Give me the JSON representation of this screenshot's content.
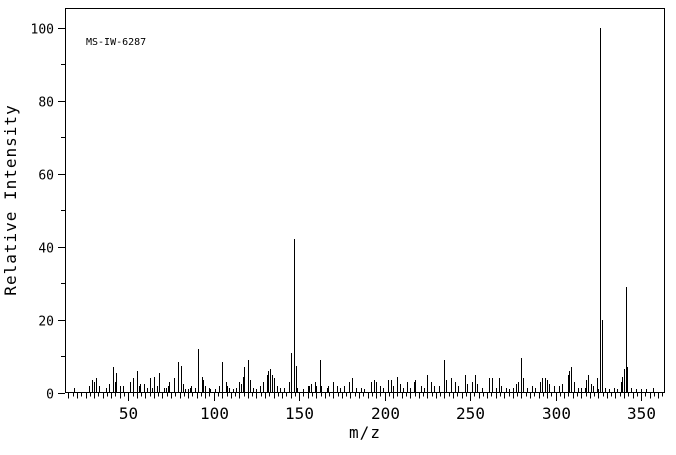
{
  "chart_data": {
    "type": "bar",
    "title": "MS-IW-6287",
    "xlabel": "m/z",
    "ylabel": "Relative Intensity",
    "xlim": [
      13,
      364
    ],
    "ylim": [
      0,
      105
    ],
    "x_major_ticks": [
      50,
      100,
      150,
      200,
      250,
      300,
      350
    ],
    "y_major_ticks": [
      0,
      20,
      40,
      60,
      80,
      100
    ],
    "x_minor_step": 2.5,
    "y_minor_step": 10,
    "grid": false,
    "legend": "none",
    "bar_color": "#000000",
    "axis_color": "#000000",
    "background": "#ffffff",
    "base_peak": {
      "mz": 326,
      "intensity": 100
    },
    "peaks": [
      [
        18,
        1.5
      ],
      [
        27,
        2
      ],
      [
        29,
        3.5
      ],
      [
        30,
        3
      ],
      [
        31,
        4
      ],
      [
        33,
        2
      ],
      [
        37,
        1.5
      ],
      [
        39,
        2.5
      ],
      [
        41,
        7
      ],
      [
        42,
        3
      ],
      [
        43,
        5.5
      ],
      [
        45,
        2
      ],
      [
        47,
        2
      ],
      [
        51,
        3
      ],
      [
        53,
        4
      ],
      [
        55,
        6
      ],
      [
        56,
        2
      ],
      [
        57,
        2.5
      ],
      [
        59,
        2.5
      ],
      [
        61,
        1.5
      ],
      [
        63,
        4
      ],
      [
        64,
        1.5
      ],
      [
        65,
        4.5
      ],
      [
        67,
        2
      ],
      [
        68,
        5.5
      ],
      [
        71,
        1.5
      ],
      [
        72,
        1.5
      ],
      [
        73,
        2
      ],
      [
        74,
        3
      ],
      [
        77,
        4
      ],
      [
        79,
        8.5
      ],
      [
        81,
        7.5
      ],
      [
        82,
        2.5
      ],
      [
        83,
        1
      ],
      [
        85,
        1
      ],
      [
        86,
        1.5
      ],
      [
        87,
        2
      ],
      [
        89,
        1.5
      ],
      [
        91,
        12
      ],
      [
        93,
        4.5
      ],
      [
        94,
        3.5
      ],
      [
        95,
        2
      ],
      [
        97,
        1.5
      ],
      [
        98,
        1
      ],
      [
        101,
        1
      ],
      [
        103,
        2
      ],
      [
        105,
        8.5
      ],
      [
        107,
        3
      ],
      [
        108,
        2
      ],
      [
        109,
        1.5
      ],
      [
        111,
        1
      ],
      [
        113,
        1.5
      ],
      [
        115,
        3
      ],
      [
        116,
        2.5
      ],
      [
        117,
        4.5
      ],
      [
        118,
        7
      ],
      [
        120,
        9
      ],
      [
        121,
        3.5
      ],
      [
        123,
        1.5
      ],
      [
        125,
        1
      ],
      [
        127,
        2
      ],
      [
        129,
        3
      ],
      [
        131,
        5
      ],
      [
        132,
        6
      ],
      [
        133,
        6.5
      ],
      [
        134,
        5
      ],
      [
        135,
        4
      ],
      [
        137,
        2
      ],
      [
        139,
        1.5
      ],
      [
        141,
        1.5
      ],
      [
        144,
        3
      ],
      [
        145,
        11
      ],
      [
        147,
        42
      ],
      [
        148,
        7.5
      ],
      [
        149,
        1.5
      ],
      [
        152,
        1
      ],
      [
        155,
        2
      ],
      [
        156,
        2
      ],
      [
        157,
        2.5
      ],
      [
        159,
        3
      ],
      [
        160,
        2
      ],
      [
        162,
        9
      ],
      [
        163,
        2
      ],
      [
        166,
        1.5
      ],
      [
        167,
        2
      ],
      [
        170,
        3
      ],
      [
        172,
        2
      ],
      [
        174,
        1.5
      ],
      [
        176,
        2
      ],
      [
        179,
        3
      ],
      [
        181,
        4
      ],
      [
        183,
        1.5
      ],
      [
        186,
        1.5
      ],
      [
        188,
        1
      ],
      [
        192,
        3
      ],
      [
        194,
        3.5
      ],
      [
        195,
        3
      ],
      [
        197,
        2
      ],
      [
        199,
        1.5
      ],
      [
        202,
        3.5
      ],
      [
        204,
        3.5
      ],
      [
        205,
        2
      ],
      [
        207,
        4.5
      ],
      [
        209,
        2.5
      ],
      [
        211,
        1.5
      ],
      [
        213,
        3
      ],
      [
        215,
        1.5
      ],
      [
        217,
        3
      ],
      [
        218,
        3.5
      ],
      [
        221,
        2
      ],
      [
        223,
        1.5
      ],
      [
        225,
        5
      ],
      [
        227,
        3
      ],
      [
        229,
        2
      ],
      [
        232,
        2
      ],
      [
        235,
        9
      ],
      [
        236,
        3.5
      ],
      [
        239,
        4
      ],
      [
        241,
        3
      ],
      [
        243,
        2
      ],
      [
        247,
        5
      ],
      [
        248,
        2.5
      ],
      [
        251,
        3
      ],
      [
        253,
        5
      ],
      [
        254,
        2.5
      ],
      [
        257,
        1.5
      ],
      [
        261,
        4
      ],
      [
        263,
        4
      ],
      [
        265,
        1.5
      ],
      [
        267,
        4
      ],
      [
        268,
        2
      ],
      [
        271,
        1.5
      ],
      [
        273,
        1
      ],
      [
        275,
        1.5
      ],
      [
        277,
        2.5
      ],
      [
        278,
        3
      ],
      [
        280,
        9.5
      ],
      [
        281,
        4
      ],
      [
        283,
        1.5
      ],
      [
        286,
        2
      ],
      [
        288,
        1.5
      ],
      [
        291,
        3
      ],
      [
        292,
        4
      ],
      [
        294,
        4
      ],
      [
        295,
        3.5
      ],
      [
        296,
        2.5
      ],
      [
        299,
        2
      ],
      [
        302,
        2
      ],
      [
        304,
        2.5
      ],
      [
        307,
        5
      ],
      [
        308,
        6
      ],
      [
        309,
        7
      ],
      [
        311,
        3
      ],
      [
        313,
        1.5
      ],
      [
        315,
        1.5
      ],
      [
        317,
        1.5
      ],
      [
        318,
        3.5
      ],
      [
        319,
        5
      ],
      [
        321,
        2.5
      ],
      [
        322,
        2
      ],
      [
        324,
        4
      ],
      [
        325,
        1
      ],
      [
        326,
        100
      ],
      [
        327,
        20
      ],
      [
        329,
        1.5
      ],
      [
        331,
        1
      ],
      [
        334,
        1.5
      ],
      [
        336,
        1
      ],
      [
        338,
        3
      ],
      [
        339,
        4.5
      ],
      [
        340,
        6.5
      ],
      [
        341,
        29
      ],
      [
        342,
        7
      ],
      [
        344,
        1.5
      ],
      [
        347,
        1
      ],
      [
        350,
        1
      ],
      [
        353,
        1
      ],
      [
        357,
        1.5
      ]
    ]
  }
}
